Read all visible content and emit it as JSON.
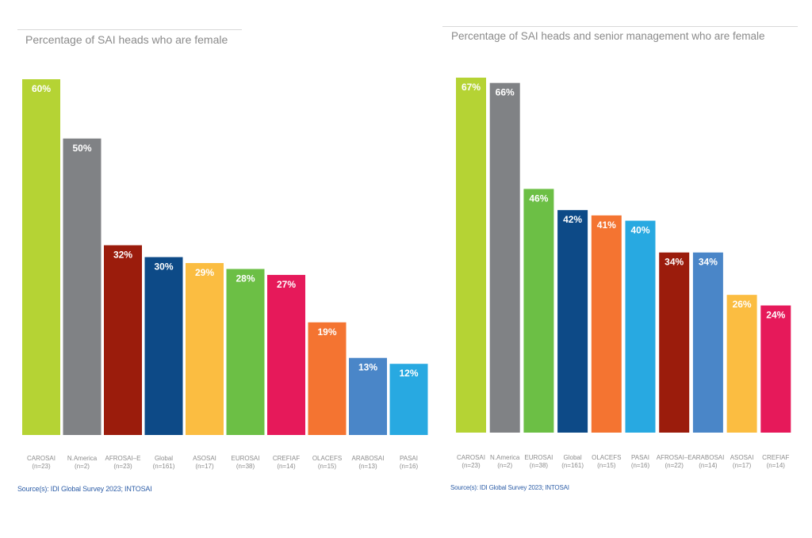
{
  "colors": {
    "CAROSAI": "#b5d334",
    "N.America": "#808285",
    "AFROSAI-E": "#9b1c0c",
    "Global": "#0d4a87",
    "ASOSAI": "#fbbd41",
    "EUROSAI": "#6cbf45",
    "CREFIAF": "#e6195a",
    "OLACEFS": "#f47431",
    "ARABOSAI": "#4a86c8",
    "PASAI": "#28a9e1"
  },
  "chart_data": [
    {
      "type": "bar",
      "title": "Percentage of SAI heads who are female",
      "xlabel": "",
      "ylabel": "",
      "ylim": [
        0,
        60
      ],
      "grid": false,
      "legend": "none",
      "categories": [
        "CAROSAI",
        "N.America",
        "AFROSAI–E",
        "Global",
        "ASOSAI",
        "EUROSAI",
        "CREFIAF",
        "OLACEFS",
        "ARABOSAI",
        "PASAI"
      ],
      "color_keys": [
        "CAROSAI",
        "N.America",
        "AFROSAI-E",
        "Global",
        "ASOSAI",
        "EUROSAI",
        "CREFIAF",
        "OLACEFS",
        "ARABOSAI",
        "PASAI"
      ],
      "sample_sizes": [
        "(n=23)",
        "(n=2)",
        "(n=23)",
        "(n=161)",
        "(n=17)",
        "(n=38)",
        "(n=14)",
        "(n=15)",
        "(n=13)",
        "(n=16)"
      ],
      "values": [
        60,
        50,
        32,
        30,
        29,
        28,
        27,
        19,
        13,
        12
      ],
      "value_labels": [
        "60%",
        "50%",
        "32%",
        "30%",
        "29%",
        "28%",
        "27%",
        "19%",
        "13%",
        "12%"
      ],
      "source": "Source(s): IDI Global Survey 2023; INTOSAI"
    },
    {
      "type": "bar",
      "title": "Percentage of SAI heads and senior management who are female",
      "xlabel": "",
      "ylabel": "",
      "ylim": [
        0,
        67
      ],
      "grid": false,
      "legend": "none",
      "categories": [
        "CAROSAI",
        "N.America",
        "EUROSAI",
        "Global",
        "OLACEFS",
        "PASAI",
        "AFROSAI–E",
        "ARABOSAI",
        "ASOSAI",
        "CREFIAF"
      ],
      "color_keys": [
        "CAROSAI",
        "N.America",
        "EUROSAI",
        "Global",
        "OLACEFS",
        "PASAI",
        "AFROSAI-E",
        "ARABOSAI",
        "ASOSAI",
        "CREFIAF"
      ],
      "sample_sizes": [
        "(n=23)",
        "(n=2)",
        "(n=38)",
        "(n=161)",
        "(n=15)",
        "(n=16)",
        "(n=22)",
        "(n=14)",
        "(n=17)",
        "(n=14)"
      ],
      "values": [
        67,
        66,
        46,
        42,
        41,
        40,
        34,
        34,
        26,
        24
      ],
      "value_labels": [
        "67%",
        "66%",
        "46%",
        "42%",
        "41%",
        "40%",
        "34%",
        "34%",
        "26%",
        "24%"
      ],
      "source": "Source(s): IDI Global Survey 2023; INTOSAI"
    }
  ]
}
